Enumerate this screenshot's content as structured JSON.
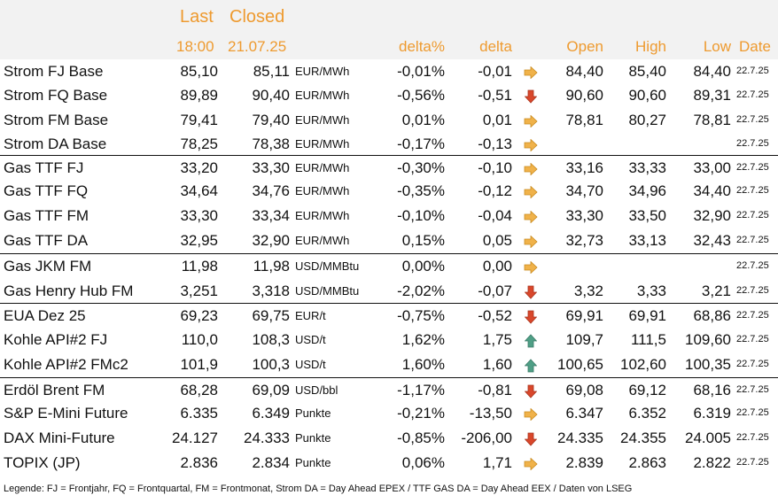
{
  "header": {
    "last": "Last",
    "closed": "Closed",
    "last_time": "18:00",
    "closed_date": "21.07.25",
    "delta_pct": "delta%",
    "delta": "delta",
    "open": "Open",
    "high": "High",
    "low": "Low",
    "date": "Date"
  },
  "colors": {
    "header_text": "#ee9a2f",
    "arrow_right": "#f0b24a",
    "arrow_down": "#d9472b",
    "arrow_up": "#4f9f86"
  },
  "rows": [
    {
      "name": "Strom FJ Base",
      "last": "85,10",
      "closed": "85,11",
      "unit": "EUR/MWh",
      "pct": "-0,01%",
      "delta": "-0,01",
      "arrow": "right-arrow-icon",
      "open": "84,40",
      "high": "85,40",
      "low": "84,40",
      "date": "22.7.25"
    },
    {
      "name": "Strom FQ Base",
      "last": "89,89",
      "closed": "90,40",
      "unit": "EUR/MWh",
      "pct": "-0,56%",
      "delta": "-0,51",
      "arrow": "down-arrow-icon",
      "open": "90,60",
      "high": "90,60",
      "low": "89,31",
      "date": "22.7.25"
    },
    {
      "name": "Strom FM Base",
      "last": "79,41",
      "closed": "79,40",
      "unit": "EUR/MWh",
      "pct": "0,01%",
      "delta": "0,01",
      "arrow": "right-arrow-icon",
      "open": "78,81",
      "high": "80,27",
      "low": "78,81",
      "date": "22.7.25"
    },
    {
      "name": "Strom DA Base",
      "last": "78,25",
      "closed": "78,38",
      "unit": "EUR/MWh",
      "pct": "-0,17%",
      "delta": "-0,13",
      "arrow": "right-arrow-icon",
      "open": "",
      "high": "",
      "low": "",
      "date": "22.7.25"
    },
    {
      "name": "Gas TTF FJ",
      "last": "33,20",
      "closed": "33,30",
      "unit": "EUR/MWh",
      "pct": "-0,30%",
      "delta": "-0,10",
      "arrow": "right-arrow-icon",
      "open": "33,16",
      "high": "33,33",
      "low": "33,00",
      "date": "22.7.25"
    },
    {
      "name": "Gas TTF FQ",
      "last": "34,64",
      "closed": "34,76",
      "unit": "EUR/MWh",
      "pct": "-0,35%",
      "delta": "-0,12",
      "arrow": "right-arrow-icon",
      "open": "34,70",
      "high": "34,96",
      "low": "34,40",
      "date": "22.7.25"
    },
    {
      "name": "Gas TTF FM",
      "last": "33,30",
      "closed": "33,34",
      "unit": "EUR/MWh",
      "pct": "-0,10%",
      "delta": "-0,04",
      "arrow": "right-arrow-icon",
      "open": "33,30",
      "high": "33,50",
      "low": "32,90",
      "date": "22.7.25"
    },
    {
      "name": "Gas TTF DA",
      "last": "32,95",
      "closed": "32,90",
      "unit": "EUR/MWh",
      "pct": "0,15%",
      "delta": "0,05",
      "arrow": "right-arrow-icon",
      "open": "32,73",
      "high": "33,13",
      "low": "32,43",
      "date": "22.7.25"
    },
    {
      "name": "Gas JKM FM",
      "last": "11,98",
      "closed": "11,98",
      "unit": "USD/MMBtu",
      "pct": "0,00%",
      "delta": "0,00",
      "arrow": "right-arrow-icon",
      "open": "",
      "high": "",
      "low": "",
      "date": "22.7.25"
    },
    {
      "name": "Gas Henry Hub FM",
      "last": "3,251",
      "closed": "3,318",
      "unit": "USD/MMBtu",
      "pct": "-2,02%",
      "delta": "-0,07",
      "arrow": "down-arrow-icon",
      "open": "3,32",
      "high": "3,33",
      "low": "3,21",
      "date": "22.7.25"
    },
    {
      "name": "EUA Dez 25",
      "last": "69,23",
      "closed": "69,75",
      "unit": "EUR/t",
      "pct": "-0,75%",
      "delta": "-0,52",
      "arrow": "down-arrow-icon",
      "open": "69,91",
      "high": "69,91",
      "low": "68,86",
      "date": "22.7.25"
    },
    {
      "name": "Kohle API#2 FJ",
      "last": "110,0",
      "closed": "108,3",
      "unit": "USD/t",
      "pct": "1,62%",
      "delta": "1,75",
      "arrow": "up-arrow-icon",
      "open": "109,7",
      "high": "111,5",
      "low": "109,60",
      "date": "22.7.25"
    },
    {
      "name": "Kohle API#2 FMc2",
      "last": "101,9",
      "closed": "100,3",
      "unit": "USD/t",
      "pct": "1,60%",
      "delta": "1,60",
      "arrow": "up-arrow-icon",
      "open": "100,65",
      "high": "102,60",
      "low": "100,35",
      "date": "22.7.25"
    },
    {
      "name": "Erdöl Brent FM",
      "last": "68,28",
      "closed": "69,09",
      "unit": "USD/bbl",
      "pct": "-1,17%",
      "delta": "-0,81",
      "arrow": "down-arrow-icon",
      "open": "69,08",
      "high": "69,12",
      "low": "68,16",
      "date": "22.7.25"
    },
    {
      "name": "S&P E-Mini Future",
      "last": "6.335",
      "closed": "6.349",
      "unit": "Punkte",
      "pct": "-0,21%",
      "delta": "-13,50",
      "arrow": "right-arrow-icon",
      "open": "6.347",
      "high": "6.352",
      "low": "6.319",
      "date": "22.7.25"
    },
    {
      "name": "DAX Mini-Future",
      "last": "24.127",
      "closed": "24.333",
      "unit": "Punkte",
      "pct": "-0,85%",
      "delta": "-206,00",
      "arrow": "down-arrow-icon",
      "open": "24.335",
      "high": "24.355",
      "low": "24.005",
      "date": "22.7.25"
    },
    {
      "name": "TOPIX (JP)",
      "last": "2.836",
      "closed": "2.834",
      "unit": "Punkte",
      "pct": "0,06%",
      "delta": "1,71",
      "arrow": "right-arrow-icon",
      "open": "2.839",
      "high": "2.863",
      "low": "2.822",
      "date": "22.7.25"
    }
  ],
  "legend": "Legende: FJ = Frontjahr, FQ = Frontquartal, FM = Frontmonat, Strom DA = Day Ahead EPEX / TTF GAS DA = Day Ahead EEX / Daten von LSEG"
}
